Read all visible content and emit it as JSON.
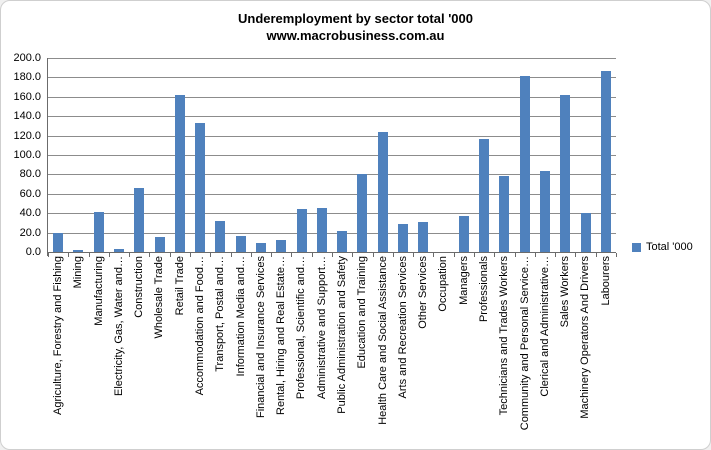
{
  "chart_data": {
    "type": "bar",
    "title": "Underemployment by sector total '000",
    "subtitle": "www.macrobusiness.com.au",
    "legend": "Total '000",
    "legend_position": "middle-right",
    "grid": true,
    "ylim": [
      0,
      200
    ],
    "ytick_step": 20,
    "ytick_format_decimals": 1,
    "bar_color": "#4f81bd",
    "gridline_color": "#8c8c8c",
    "axis_color": "#6b6b6b",
    "categories": [
      "Agriculture, Forestry and Fishing",
      "Mining",
      "Manufacturing",
      "Electricity, Gas, Water and…",
      "Construction",
      "Wholesale Trade",
      "Retail Trade",
      "Accommodation and Food…",
      "Transport, Postal and…",
      "Information Media and…",
      "Financial and Insurance Services",
      "Rental, Hiring and Real Estate…",
      "Professional, Scientific and…",
      "Administrative and Support…",
      "Public Administration and Safety",
      "Education and Training",
      "Health Care and Social Assistance",
      "Arts and Recreation Services",
      "Other Services",
      "Occupation",
      "Managers",
      "Professionals",
      "Technicians and Trades Workers",
      "Community and Personal Service…",
      "Clerical and Administrative…",
      "Sales Workers",
      "Machinery Operators And Drivers",
      "Labourers"
    ],
    "values": [
      20,
      2.5,
      41,
      3.5,
      66,
      15,
      162,
      133,
      32,
      16,
      9.5,
      12,
      44,
      45,
      22,
      80,
      124,
      28.5,
      30.5,
      0,
      37,
      116,
      78,
      181,
      84,
      162,
      40,
      187
    ]
  }
}
